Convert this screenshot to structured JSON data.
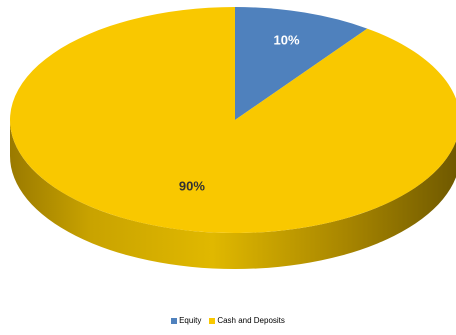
{
  "chart_data": {
    "type": "pie",
    "style": "3d",
    "slices": [
      {
        "label": "Equity",
        "value": 10,
        "data_label": "10%",
        "color": "#4f81bd"
      },
      {
        "label": "Cash and Deposits",
        "value": 90,
        "data_label": "90%",
        "color": "#f9c800"
      }
    ],
    "legend_position": "bottom",
    "label_color": "#333333"
  }
}
